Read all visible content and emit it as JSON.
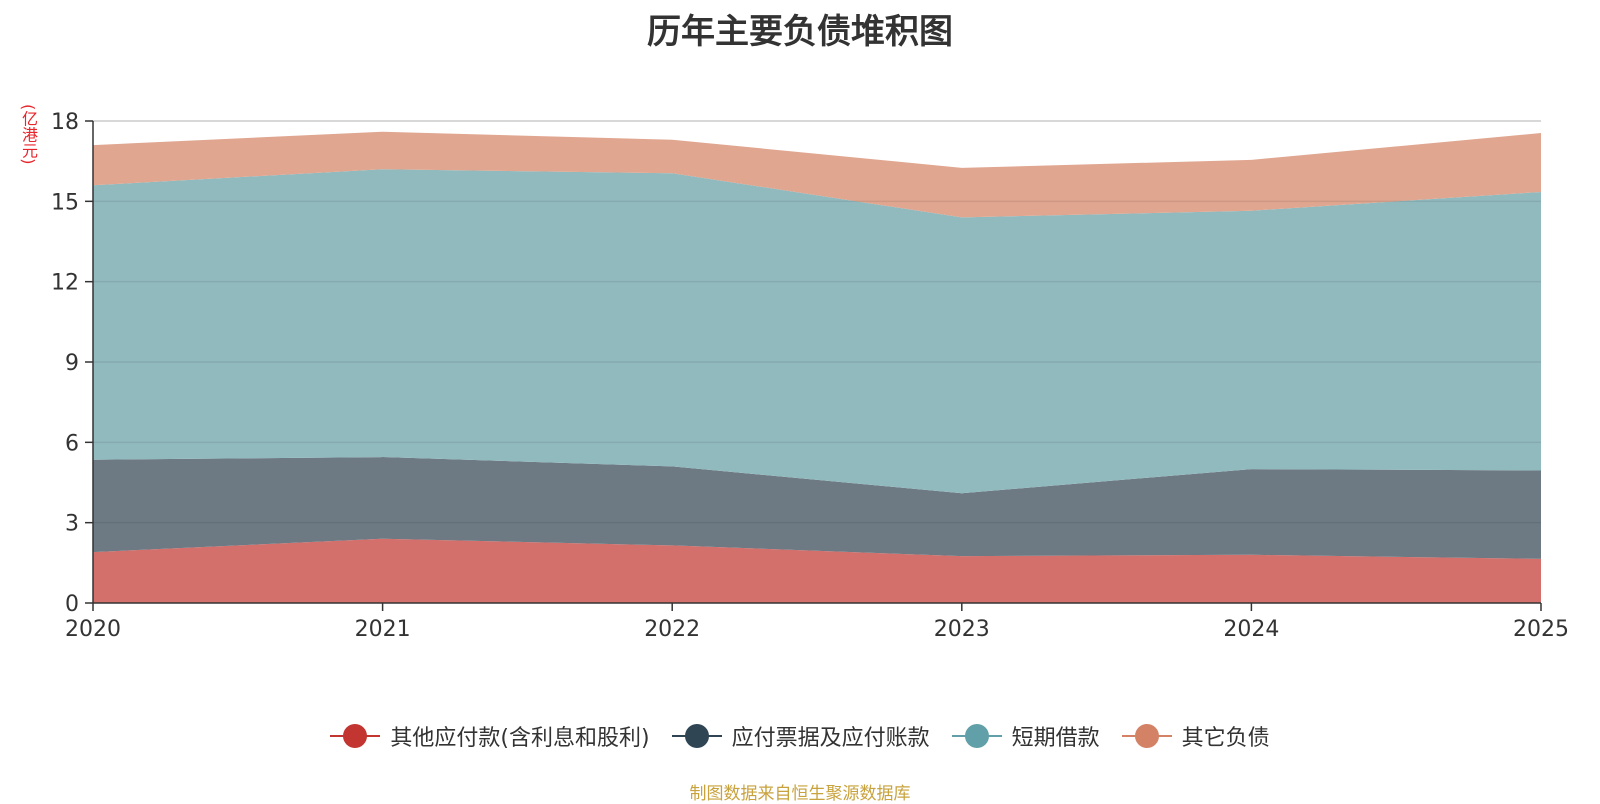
{
  "chart_data": {
    "type": "area",
    "stacked": true,
    "title": "历年主要负债堆积图",
    "ylabel": "(亿港元)",
    "xlabel": "",
    "categories": [
      "2020",
      "2021",
      "2022",
      "2023",
      "2024",
      "2025"
    ],
    "ylim": [
      0,
      18
    ],
    "yticks": [
      "0",
      "3",
      "6",
      "9",
      "12",
      "15",
      "18"
    ],
    "grid": true,
    "legend_position": "bottom",
    "series": [
      {
        "name": "其他应付款(含利息和股利)",
        "values": [
          1.9,
          2.4,
          2.15,
          1.75,
          1.8,
          1.65
        ],
        "color": "#c23531",
        "fill": "#d4706c"
      },
      {
        "name": "应付票据及应付账款",
        "values": [
          3.45,
          3.05,
          2.95,
          2.35,
          3.2,
          3.3
        ],
        "color": "#2f4554",
        "fill": "#6d7a84"
      },
      {
        "name": "短期借款",
        "values": [
          10.25,
          10.75,
          10.95,
          10.3,
          9.65,
          10.4
        ],
        "color": "#61a0a8",
        "fill": "#91babf"
      },
      {
        "name": "其它负债",
        "values": [
          1.5,
          1.4,
          1.25,
          1.85,
          1.9,
          2.2
        ],
        "color": "#d48265",
        "fill": "#e0a690"
      }
    ],
    "source_note": "制图数据来自恒生聚源数据库"
  }
}
